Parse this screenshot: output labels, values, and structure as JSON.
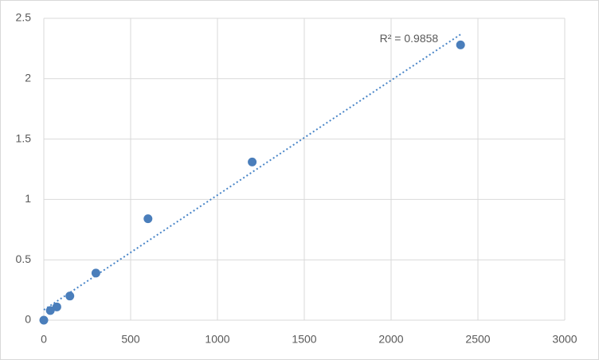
{
  "chart_data": {
    "type": "scatter",
    "x": [
      0,
      37.5,
      75,
      150,
      300,
      600,
      1200,
      2400
    ],
    "values": [
      0,
      0.08,
      0.11,
      0.2,
      0.39,
      0.84,
      1.31,
      2.28
    ],
    "color": "#4a7ebb",
    "trendline": {
      "type": "linear",
      "color": "#4a86c8",
      "annotation": "R² = 0.9858"
    },
    "xlim": [
      0,
      3000
    ],
    "xticks": [
      0,
      500,
      1000,
      1500,
      2000,
      2500,
      3000
    ],
    "ylim": [
      0,
      2.5
    ],
    "yticks": [
      0,
      0.5,
      1,
      1.5,
      2,
      2.5
    ],
    "grid": true
  }
}
